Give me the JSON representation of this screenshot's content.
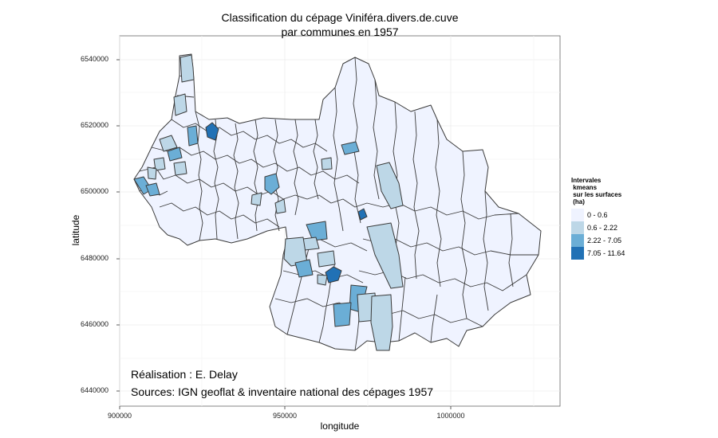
{
  "map": {
    "title_line1": "Classification du cépage Viniféra.divers.de.cuve",
    "title_line2": "par communes en 1957",
    "xlabel": "longitude",
    "ylabel": "latitude",
    "x_ticks": [
      "900000",
      "950000",
      "1000000"
    ],
    "y_ticks": [
      "6540000",
      "6520000",
      "6500000",
      "6480000",
      "6460000",
      "6440000"
    ],
    "credit_line1": "Réalisation : E. Delay",
    "credit_line2": "Sources: IGN geoflat & inventaire national des cépages 1957"
  },
  "legend": {
    "title": "Intervales\n kmeans\n sur les surfaces\n (ha)",
    "items": [
      {
        "label": "0 - 0.6",
        "color": "#eff3ff"
      },
      {
        "label": "0.6 - 2.22",
        "color": "#bdd7e7"
      },
      {
        "label": "2.22 - 7.05",
        "color": "#6baed6"
      },
      {
        "label": "7.05 - 11.64",
        "color": "#2171b5"
      }
    ]
  },
  "colors": {
    "panel_background": "#ffffff",
    "grid": "#ececec",
    "border": "#444444"
  }
}
